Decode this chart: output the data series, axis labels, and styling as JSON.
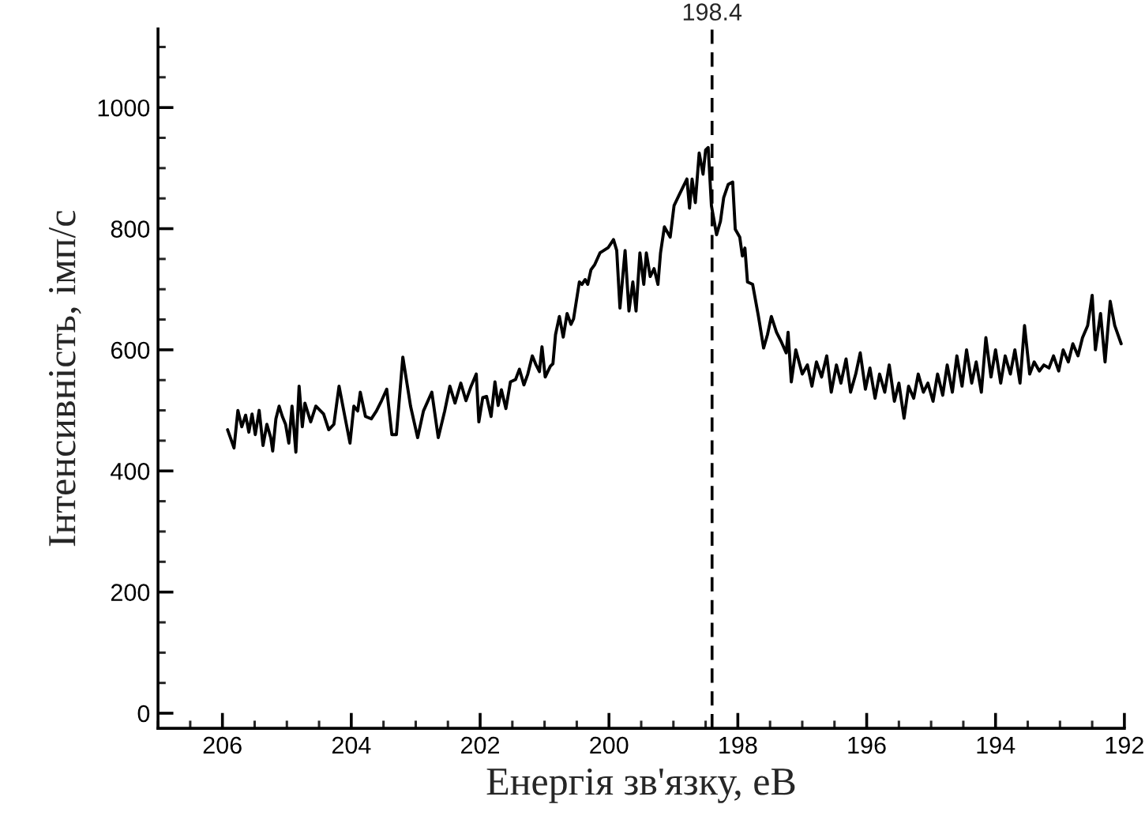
{
  "chart_data": {
    "type": "line",
    "xlabel": "Енергія зв'язку, еВ",
    "ylabel": "Інтенсивність, імп/с",
    "xlim": [
      207,
      192
    ],
    "xticks": [
      206,
      204,
      202,
      200,
      198,
      196,
      194,
      192
    ],
    "ylim": [
      -25,
      1130
    ],
    "yticks": [
      0,
      200,
      400,
      600,
      800,
      1000
    ],
    "grid": false,
    "legend": false,
    "marker": "none",
    "line_style": "solid",
    "ref_lines": [
      {
        "axis": "x",
        "value": 198.4,
        "label": "198.4",
        "line_style": "dashed",
        "color": "#000000"
      }
    ],
    "series": [
      {
        "color": "#000000",
        "x": [
          205.92,
          205.82,
          205.76,
          205.7,
          205.64,
          205.59,
          205.54,
          205.49,
          205.43,
          205.37,
          205.31,
          205.25,
          205.22,
          205.17,
          205.12,
          205.07,
          205.02,
          204.97,
          204.92,
          204.86,
          204.81,
          204.76,
          204.72,
          204.63,
          204.55,
          204.43,
          204.35,
          204.27,
          204.19,
          204.1,
          204.02,
          203.96,
          203.9,
          203.86,
          203.78,
          203.69,
          203.61,
          203.53,
          203.45,
          203.37,
          203.3,
          203.2,
          203.08,
          202.97,
          202.88,
          202.75,
          202.65,
          202.55,
          202.47,
          202.39,
          202.3,
          202.22,
          202.14,
          202.06,
          202.02,
          201.96,
          201.9,
          201.83,
          201.77,
          201.72,
          201.67,
          201.6,
          201.53,
          201.45,
          201.39,
          201.32,
          201.26,
          201.19,
          201.14,
          201.08,
          201.04,
          200.99,
          200.91,
          200.87,
          200.83,
          200.77,
          200.71,
          200.65,
          200.59,
          200.55,
          200.46,
          200.42,
          200.37,
          200.33,
          200.28,
          200.22,
          200.14,
          200.01,
          199.93,
          199.88,
          199.83,
          199.75,
          199.69,
          199.63,
          199.58,
          199.52,
          199.46,
          199.42,
          199.36,
          199.3,
          199.24,
          199.2,
          199.14,
          199.05,
          198.99,
          198.91,
          198.85,
          198.79,
          198.75,
          198.71,
          198.66,
          198.6,
          198.54,
          198.5,
          198.46,
          198.41,
          198.33,
          198.27,
          198.22,
          198.15,
          198.08,
          198.04,
          197.97,
          197.93,
          197.89,
          197.85,
          197.77,
          197.68,
          197.6,
          197.54,
          197.48,
          197.4,
          197.32,
          197.25,
          197.22,
          197.17,
          197.1,
          197.0,
          196.92,
          196.85,
          196.78,
          196.7,
          196.62,
          196.55,
          196.47,
          196.4,
          196.32,
          196.25,
          196.17,
          196.1,
          196.02,
          195.95,
          195.87,
          195.8,
          195.72,
          195.65,
          195.57,
          195.5,
          195.42,
          195.35,
          195.27,
          195.2,
          195.12,
          195.05,
          194.97,
          194.9,
          194.82,
          194.75,
          194.67,
          194.6,
          194.52,
          194.45,
          194.37,
          194.3,
          194.22,
          194.15,
          194.07,
          194.0,
          193.92,
          193.85,
          193.77,
          193.7,
          193.62,
          193.55,
          193.47,
          193.4,
          193.32,
          193.25,
          193.17,
          193.1,
          193.02,
          192.95,
          192.87,
          192.8,
          192.72,
          192.65,
          192.57,
          192.5,
          192.45,
          192.37,
          192.3,
          192.22,
          192.15,
          192.05
        ],
        "values": [
          468,
          438,
          500,
          473,
          492,
          464,
          494,
          460,
          500,
          442,
          477,
          455,
          433,
          486,
          507,
          490,
          477,
          446,
          507,
          431,
          540,
          473,
          512,
          481,
          507,
          494,
          468,
          477,
          540,
          490,
          446,
          507,
          499,
          530,
          490,
          486,
          499,
          516,
          535,
          460,
          460,
          588,
          507,
          455,
          499,
          530,
          455,
          499,
          540,
          512,
          545,
          516,
          540,
          560,
          481,
          521,
          523,
          490,
          547,
          508,
          534,
          503,
          547,
          551,
          568,
          542,
          560,
          590,
          577,
          564,
          605,
          555,
          573,
          577,
          625,
          655,
          621,
          660,
          642,
          651,
          712,
          708,
          716,
          708,
          732,
          741,
          760,
          769,
          782,
          764,
          669,
          764,
          664,
          712,
          664,
          760,
          708,
          760,
          721,
          734,
          708,
          760,
          803,
          786,
          838,
          856,
          869,
          882,
          834,
          882,
          843,
          925,
          890,
          930,
          934,
          838,
          790,
          812,
          851,
          873,
          877,
          799,
          786,
          755,
          768,
          712,
          708,
          655,
          603,
          625,
          655,
          629,
          612,
          595,
          629,
          547,
          600,
          560,
          575,
          540,
          580,
          555,
          590,
          530,
          575,
          545,
          585,
          530,
          560,
          595,
          535,
          570,
          520,
          560,
          530,
          575,
          515,
          545,
          487,
          540,
          520,
          560,
          530,
          545,
          515,
          560,
          525,
          575,
          530,
          590,
          540,
          600,
          545,
          580,
          530,
          620,
          555,
          600,
          545,
          590,
          560,
          600,
          545,
          640,
          560,
          580,
          565,
          575,
          570,
          590,
          565,
          600,
          580,
          610,
          590,
          620,
          640,
          690,
          600,
          660,
          580,
          680,
          640,
          610
        ]
      }
    ]
  }
}
